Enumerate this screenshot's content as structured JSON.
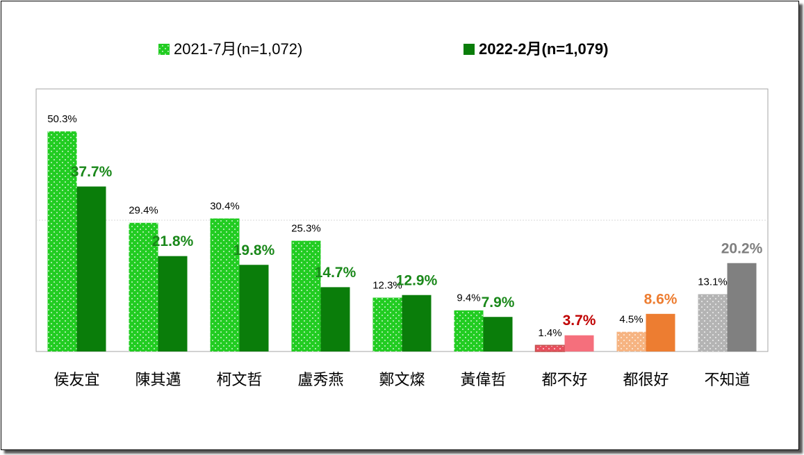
{
  "chart_data": {
    "type": "bar",
    "categories": [
      "侯友宜",
      "陳其邁",
      "柯文哲",
      "盧秀燕",
      "鄭文燦",
      "黃偉哲",
      "都不好",
      "都很好",
      "不知道"
    ],
    "series": [
      {
        "name": "2021-7月(n=1,072)",
        "color": "#22cc22",
        "pattern": "dotted",
        "colors": [
          "#22cc22",
          "#22cc22",
          "#22cc22",
          "#22cc22",
          "#22cc22",
          "#22cc22",
          "#e8505e",
          "#f6b482",
          "#b4b4b4"
        ],
        "label_colors": [
          "#000000",
          "#000000",
          "#000000",
          "#000000",
          "#000000",
          "#000000",
          "#000000",
          "#000000",
          "#000000"
        ],
        "values": [
          50.3,
          29.4,
          30.4,
          25.3,
          12.3,
          9.4,
          1.4,
          4.5,
          13.1
        ],
        "value_labels": [
          "50.3%",
          "29.4%",
          "30.4%",
          "25.3%",
          "12.3%",
          "9.4%",
          "1.4%",
          "4.5%",
          "13.1%"
        ]
      },
      {
        "name": "2022-2月(n=1,079)",
        "color": "#0a7d0a",
        "colors": [
          "#0a7d0a",
          "#0a7d0a",
          "#0a7d0a",
          "#0a7d0a",
          "#0a7d0a",
          "#0a7d0a",
          "#f56f7c",
          "#ed7d31",
          "#808080"
        ],
        "label_colors": [
          "#1a881a",
          "#1a881a",
          "#1a881a",
          "#1a881a",
          "#1a881a",
          "#1a881a",
          "#c00000",
          "#ed7d31",
          "#7f7f7f"
        ],
        "values": [
          37.7,
          21.8,
          19.8,
          14.7,
          12.9,
          7.9,
          3.7,
          8.6,
          20.2
        ],
        "value_labels": [
          "37.7%",
          "21.8%",
          "19.8%",
          "14.7%",
          "12.9%",
          "7.9%",
          "3.7%",
          "8.6%",
          "20.2%"
        ]
      }
    ],
    "ylim": [
      0,
      60
    ],
    "gridlines": [
      30
    ]
  }
}
